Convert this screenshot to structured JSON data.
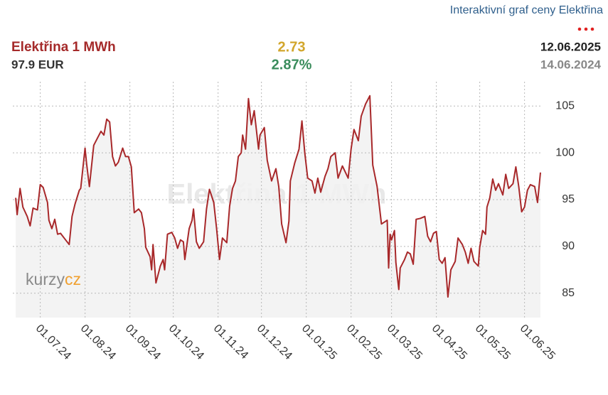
{
  "header": {
    "link": "Interaktivní graf ceny Elektřina",
    "title": "Elektřina 1 MWh",
    "price": "97.9 EUR",
    "change": "2.73",
    "change_pct": "2.87%",
    "date_to": "12.06.2025",
    "date_from": "14.06.2024",
    "logo": [
      "kurzy",
      "cz"
    ]
  },
  "chart_data": {
    "type": "line",
    "color": "#a8282a",
    "area_color": "#f1f1f1",
    "grid": true,
    "y_axis_side": "right",
    "xlim": [
      "2024-06-12",
      "2025-06-12"
    ],
    "xticks": [
      {
        "value": "2024-07-01",
        "label": "01.07.24"
      },
      {
        "value": "2024-08-01",
        "label": "01.08.24"
      },
      {
        "value": "2024-09-01",
        "label": "01.09.24"
      },
      {
        "value": "2024-10-01",
        "label": "01.10.24"
      },
      {
        "value": "2024-11-01",
        "label": "01.11.24"
      },
      {
        "value": "2024-12-01",
        "label": "01.12.24"
      },
      {
        "value": "2025-01-01",
        "label": "01.01.25"
      },
      {
        "value": "2025-02-01",
        "label": "01.02.25"
      },
      {
        "value": "2025-03-01",
        "label": "01.03.25"
      },
      {
        "value": "2025-04-01",
        "label": "01.04.25"
      },
      {
        "value": "2025-05-01",
        "label": "01.05.25"
      },
      {
        "value": "2025-06-01",
        "label": "01.06.25"
      }
    ],
    "ylim": [
      82.4,
      107.6
    ],
    "yticks": [
      85,
      90,
      95,
      100,
      105
    ],
    "x": [
      "2024-06-14",
      "2024-06-15",
      "2024-06-17",
      "2024-06-19",
      "2024-06-22",
      "2024-06-24",
      "2024-06-26",
      "2024-06-29",
      "2024-07-01",
      "2024-07-03",
      "2024-07-06",
      "2024-07-07",
      "2024-07-09",
      "2024-07-11",
      "2024-07-13",
      "2024-07-15",
      "2024-07-18",
      "2024-07-21",
      "2024-07-23",
      "2024-07-25",
      "2024-07-28",
      "2024-07-29",
      "2024-08-01",
      "2024-08-02",
      "2024-08-04",
      "2024-08-07",
      "2024-08-10",
      "2024-08-12",
      "2024-08-14",
      "2024-08-16",
      "2024-08-18",
      "2024-08-20",
      "2024-08-22",
      "2024-08-24",
      "2024-08-27",
      "2024-08-29",
      "2024-08-31",
      "2024-09-02",
      "2024-09-04",
      "2024-09-07",
      "2024-09-09",
      "2024-09-11",
      "2024-09-12",
      "2024-09-15",
      "2024-09-16",
      "2024-09-17",
      "2024-09-19",
      "2024-09-22",
      "2024-09-24",
      "2024-09-25",
      "2024-09-27",
      "2024-09-30",
      "2024-10-02",
      "2024-10-04",
      "2024-10-06",
      "2024-10-08",
      "2024-10-09",
      "2024-10-12",
      "2024-10-14",
      "2024-10-15",
      "2024-10-17",
      "2024-10-19",
      "2024-10-22",
      "2024-10-24",
      "2024-10-26",
      "2024-10-29",
      "2024-10-31",
      "2024-11-02",
      "2024-11-04",
      "2024-11-07",
      "2024-11-09",
      "2024-11-11",
      "2024-11-13",
      "2024-11-15",
      "2024-11-17",
      "2024-11-18",
      "2024-11-20",
      "2024-11-22",
      "2024-11-24",
      "2024-11-26",
      "2024-11-29",
      "2024-11-30",
      "2024-12-03",
      "2024-12-05",
      "2024-12-08",
      "2024-12-11",
      "2024-12-13",
      "2024-12-15",
      "2024-12-18",
      "2024-12-20",
      "2024-12-21",
      "2024-12-24",
      "2024-12-27",
      "2024-12-29",
      "2024-12-31",
      "2025-01-02",
      "2025-01-05",
      "2025-01-07",
      "2025-01-09",
      "2025-01-11",
      "2025-01-14",
      "2025-01-16",
      "2025-01-18",
      "2025-01-21",
      "2025-01-23",
      "2025-01-26",
      "2025-01-30",
      "2025-02-01",
      "2025-02-03",
      "2025-02-06",
      "2025-02-08",
      "2025-02-11",
      "2025-02-14",
      "2025-02-16",
      "2025-02-19",
      "2025-02-22",
      "2025-02-25",
      "2025-02-26",
      "2025-02-27",
      "2025-02-28",
      "2025-03-01",
      "2025-03-03",
      "2025-03-04",
      "2025-03-06",
      "2025-03-07",
      "2025-03-10",
      "2025-03-12",
      "2025-03-14",
      "2025-03-16",
      "2025-03-18",
      "2025-03-21",
      "2025-03-24",
      "2025-03-26",
      "2025-03-28",
      "2025-03-30",
      "2025-04-01",
      "2025-04-03",
      "2025-04-05",
      "2025-04-07",
      "2025-04-09",
      "2025-04-11",
      "2025-04-14",
      "2025-04-16",
      "2025-04-19",
      "2025-04-21",
      "2025-04-23",
      "2025-04-25",
      "2025-04-27",
      "2025-04-30",
      "2025-05-01",
      "2025-05-03",
      "2025-05-05",
      "2025-05-06",
      "2025-05-08",
      "2025-05-10",
      "2025-05-12",
      "2025-05-14",
      "2025-05-17",
      "2025-05-19",
      "2025-05-21",
      "2025-05-24",
      "2025-05-26",
      "2025-05-28",
      "2025-05-30",
      "2025-06-01",
      "2025-06-03",
      "2025-06-05",
      "2025-06-08",
      "2025-06-10",
      "2025-06-12"
    ],
    "values": [
      95.2,
      93.4,
      96.2,
      94.2,
      93.2,
      92.2,
      94.1,
      93.9,
      96.6,
      96.3,
      94.7,
      92.8,
      91.9,
      92.9,
      91.3,
      91.4,
      90.8,
      90.2,
      93.2,
      94.5,
      96.0,
      96.2,
      100.5,
      98.9,
      96.4,
      100.8,
      101.7,
      102.3,
      101.9,
      103.6,
      103.3,
      99.6,
      98.6,
      99.0,
      100.5,
      99.6,
      99.6,
      98.5,
      93.6,
      94.0,
      93.6,
      91.9,
      89.9,
      88.9,
      87.5,
      90.2,
      86.1,
      87.9,
      88.6,
      87.5,
      91.3,
      91.5,
      90.9,
      89.8,
      90.7,
      90.5,
      88.6,
      91.9,
      92.8,
      94.0,
      90.5,
      89.8,
      90.5,
      94.0,
      96.1,
      94.7,
      91.9,
      88.6,
      90.9,
      90.4,
      94.3,
      96.2,
      97.0,
      99.6,
      100.0,
      101.9,
      100.4,
      105.8,
      103.0,
      104.5,
      100.4,
      101.9,
      102.7,
      99.2,
      97.0,
      98.3,
      96.4,
      92.4,
      90.4,
      92.7,
      97.0,
      98.9,
      100.4,
      103.4,
      100.0,
      97.3,
      97.0,
      95.7,
      97.3,
      95.8,
      97.5,
      98.3,
      99.6,
      100.0,
      97.3,
      98.6,
      97.3,
      100.4,
      102.5,
      101.3,
      103.9,
      105.2,
      106.1,
      98.7,
      96.4,
      92.4,
      92.7,
      92.8,
      87.7,
      91.3,
      90.7,
      91.7,
      88.3,
      85.4,
      87.7,
      88.6,
      89.4,
      89.2,
      88.1,
      92.9,
      93.0,
      93.2,
      91.1,
      90.5,
      91.4,
      91.6,
      88.6,
      88.2,
      88.8,
      84.6,
      87.5,
      88.4,
      90.9,
      90.2,
      89.4,
      88.2,
      89.8,
      88.4,
      87.9,
      89.9,
      91.7,
      91.3,
      94.2,
      95.2,
      97.2,
      96.0,
      96.7,
      95.5,
      97.7,
      96.2,
      96.7,
      98.5,
      96.4,
      93.7,
      94.2,
      96.0,
      96.6,
      96.4,
      94.7,
      97.9
    ]
  }
}
